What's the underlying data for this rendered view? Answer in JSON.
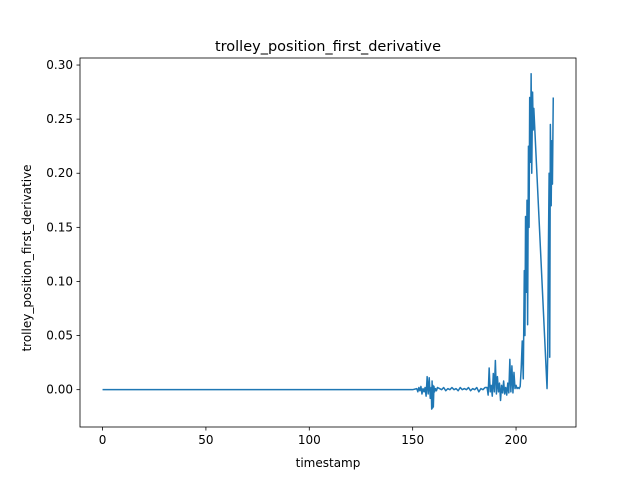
{
  "chart_data": {
    "type": "line",
    "title": "trolley_position_first_derivative",
    "xlabel": "timestamp",
    "ylabel": "trolley_position_first_derivative",
    "xlim": [
      -10.9,
      229
    ],
    "ylim": [
      -0.0345,
      0.3065
    ],
    "xticks": [
      0,
      50,
      100,
      150,
      200
    ],
    "yticks": [
      0.0,
      0.05,
      0.1,
      0.15,
      0.2,
      0.25,
      0.3
    ],
    "xtick_labels": [
      "0",
      "50",
      "100",
      "150",
      "200"
    ],
    "ytick_labels": [
      "0.00",
      "0.05",
      "0.10",
      "0.15",
      "0.20",
      "0.25",
      "0.30"
    ],
    "grid": false,
    "legend": "none",
    "series": [
      {
        "color": "#1f77b4",
        "x": [
          0,
          20,
          40,
          60,
          80,
          100,
          120,
          140,
          150,
          152,
          152.5,
          153,
          153.5,
          154,
          154.5,
          155,
          155.5,
          156,
          156.5,
          157,
          157.5,
          158,
          158.5,
          159,
          159.2,
          159.4,
          159.6,
          159.8,
          160,
          160.3,
          160.6,
          161,
          161.5,
          162,
          163,
          164,
          165,
          166,
          167,
          168,
          169,
          170,
          171,
          172,
          173,
          174,
          175,
          176,
          177,
          178,
          179,
          180,
          181,
          182,
          183,
          184,
          185,
          186,
          186.5,
          187,
          187.5,
          188,
          188.5,
          189,
          189.5,
          190,
          190.5,
          191,
          191.5,
          192,
          192.5,
          193,
          193.5,
          194,
          194.5,
          195,
          195.5,
          196,
          196.5,
          197,
          197.5,
          198,
          198.5,
          199,
          199.5,
          200,
          200.5,
          201,
          201.5,
          202,
          202.5,
          203,
          203.5,
          204,
          204.3,
          204.6,
          205,
          205.3,
          205.6,
          206,
          206.3,
          206.6,
          207,
          207.3,
          207.6,
          208,
          208.3,
          208.6,
          215,
          215.3,
          215.6,
          216,
          216.3,
          216.6,
          217,
          217.3,
          217.6,
          218
        ],
        "y": [
          0,
          0,
          0,
          0,
          0,
          0,
          0,
          0,
          0,
          0.001,
          -0.002,
          0.002,
          -0.001,
          0.003,
          -0.004,
          0.001,
          -0.002,
          0.002,
          -0.006,
          0.012,
          -0.004,
          0.011,
          -0.008,
          0.002,
          -0.018,
          0.008,
          -0.017,
          0.004,
          -0.016,
          0.003,
          -0.002,
          0.001,
          -0.001,
          0.002,
          0.001,
          0,
          0.002,
          -0.001,
          0.001,
          0,
          0.002,
          0,
          0.001,
          -0.001,
          0.002,
          0,
          0.001,
          0,
          0.002,
          -0.001,
          0.001,
          0,
          0.002,
          -0.002,
          0.001,
          0,
          0.002,
          0.002,
          -0.005,
          0.02,
          -0.002,
          0.004,
          -0.006,
          0.015,
          -0.002,
          0.027,
          -0.004,
          0.012,
          -0.002,
          0.006,
          -0.01,
          0.004,
          -0.003,
          0.008,
          -0.004,
          0.002,
          -0.005,
          0.006,
          -0.003,
          0.028,
          -0.002,
          0.022,
          -0.003,
          0.016,
          0.001,
          0.004,
          0.001,
          0.002,
          0.001,
          0.003,
          0.02,
          0.045,
          0.01,
          0.11,
          0.05,
          0.16,
          0.09,
          0.175,
          0.06,
          0.225,
          0.15,
          0.27,
          0.21,
          0.292,
          0.2,
          0.275,
          0.24,
          0.26,
          0.001,
          0.03,
          0.12,
          0.2,
          0.03,
          0.245,
          0.17,
          0.23,
          0.19,
          0.27
        ]
      }
    ]
  }
}
